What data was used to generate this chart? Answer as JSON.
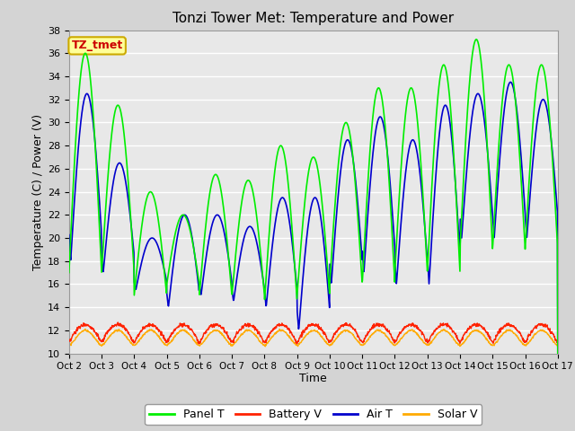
{
  "title": "Tonzi Tower Met: Temperature and Power",
  "xlabel": "Time",
  "ylabel": "Temperature (C) / Power (V)",
  "ylim": [
    10,
    38
  ],
  "yticks": [
    10,
    12,
    14,
    16,
    18,
    20,
    22,
    24,
    26,
    28,
    30,
    32,
    34,
    36,
    38
  ],
  "xtick_labels": [
    "Oct 2",
    "Oct 3",
    "Oct 4",
    "Oct 5",
    "Oct 6",
    "Oct 7",
    "Oct 8",
    "Oct 9",
    "Oct 10",
    "Oct 11",
    "Oct 12",
    "Oct 13",
    "Oct 14",
    "Oct 15",
    "Oct 16",
    "Oct 17"
  ],
  "legend_labels": [
    "Panel T",
    "Battery V",
    "Air T",
    "Solar V"
  ],
  "panel_t_color": "#00ee00",
  "battery_v_color": "#ff2200",
  "air_t_color": "#0000cc",
  "solar_v_color": "#ffaa00",
  "annotation_text": "TZ_tmet",
  "annotation_text_color": "#cc0000",
  "annotation_bg_color": "#ffff99",
  "annotation_border_color": "#ccaa00",
  "fig_bg_color": "#d4d4d4",
  "plot_bg_color": "#e8e8e8",
  "grid_color": "#ffffff",
  "num_days": 15,
  "pts_per_day": 96
}
